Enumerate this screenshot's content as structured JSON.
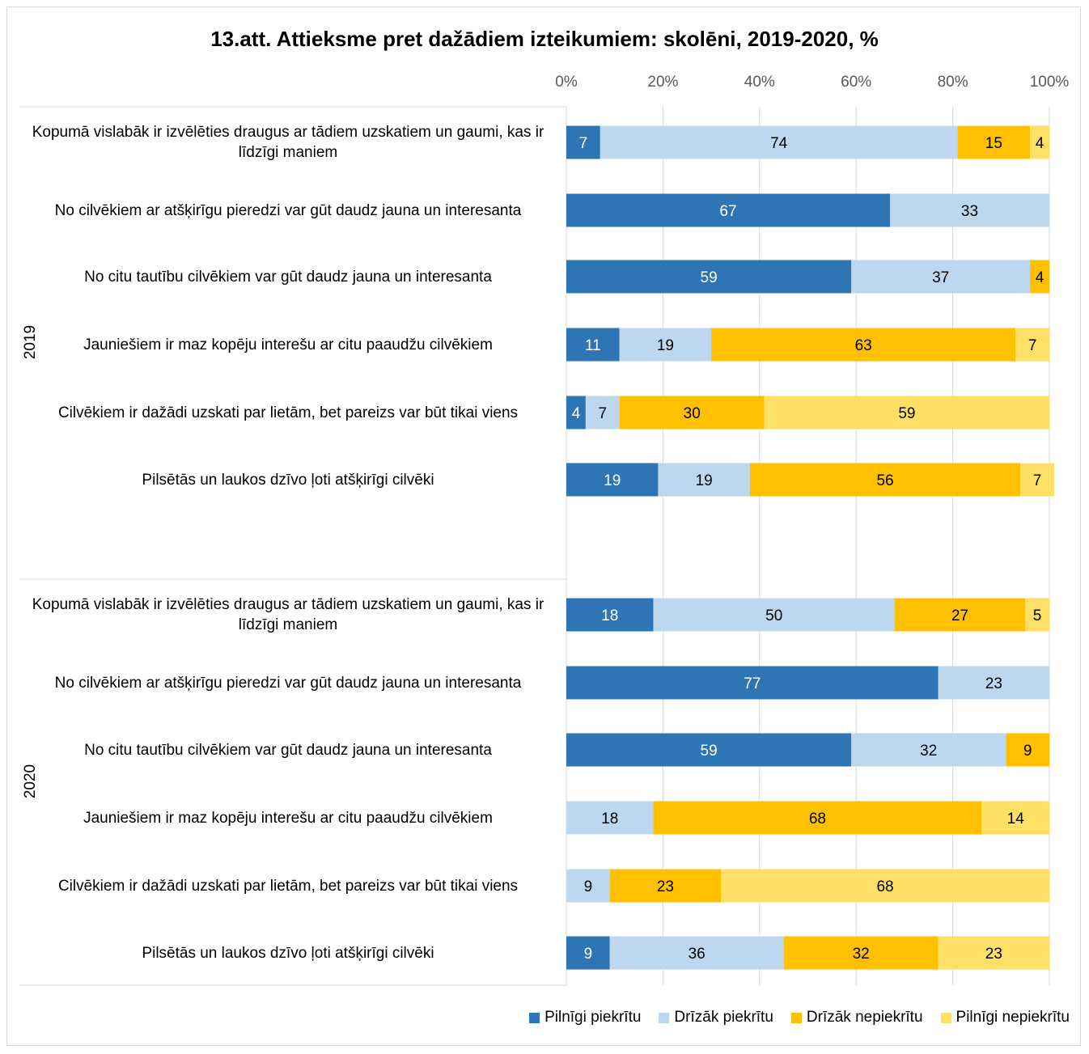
{
  "chart_data": {
    "type": "bar",
    "orientation": "horizontal-stacked-100",
    "title": "13.att. Attieksme pret dažādiem izteikumiem: skolēni, 2019-2020, %",
    "xlim": [
      0,
      100
    ],
    "x_ticks": [
      "0%",
      "20%",
      "40%",
      "60%",
      "80%",
      "100%"
    ],
    "gridlines": true,
    "legend_position": "bottom-right",
    "legend": [
      {
        "name": "Pilnīgi piekrītu",
        "color": "#2E75B6"
      },
      {
        "name": "Drīzāk piekrītu",
        "color": "#BDD7EE"
      },
      {
        "name": "Drīzāk nepiekrītu",
        "color": "#FFC000"
      },
      {
        "name": "Pilnīgi nepiekrītu",
        "color": "#FFE066"
      }
    ],
    "groups": [
      {
        "year": "2019",
        "rows": [
          {
            "label": "Kopumā vislabāk ir izvēlēties draugus ar tādiem uzskatiem un gaumi, kas ir līdzīgi maniem",
            "values": [
              7,
              74,
              15,
              4
            ]
          },
          {
            "label": "No cilvēkiem ar atšķirīgu pieredzi var gūt daudz jauna un interesanta",
            "values": [
              67,
              33,
              0,
              0
            ]
          },
          {
            "label": "No citu tautību cilvēkiem var gūt daudz jauna un interesanta",
            "values": [
              59,
              37,
              4,
              0
            ]
          },
          {
            "label": "Jauniešiem ir maz kopēju interešu ar citu paaudžu cilvēkiem",
            "values": [
              11,
              19,
              63,
              7
            ]
          },
          {
            "label": "Cilvēkiem ir dažādi uzskati par lietām, bet pareizs var būt tikai viens",
            "values": [
              4,
              7,
              30,
              59
            ]
          },
          {
            "label": "Pilsētās un laukos dzīvo ļoti atšķirīgi cilvēki",
            "values": [
              19,
              19,
              56,
              7
            ]
          }
        ]
      },
      {
        "year": "2020",
        "rows": [
          {
            "label": "Kopumā vislabāk ir izvēlēties draugus ar tādiem uzskatiem un gaumi, kas ir līdzīgi maniem",
            "values": [
              18,
              50,
              27,
              5
            ]
          },
          {
            "label": "No cilvēkiem ar atšķirīgu pieredzi var gūt daudz jauna un interesanta",
            "values": [
              77,
              23,
              0,
              0
            ]
          },
          {
            "label": "No citu tautību cilvēkiem var gūt daudz jauna un interesanta",
            "values": [
              59,
              32,
              9,
              0
            ]
          },
          {
            "label": "Jauniešiem ir maz kopēju interešu ar citu paaudžu cilvēkiem",
            "values": [
              0,
              18,
              68,
              14
            ]
          },
          {
            "label": "Cilvēkiem ir dažādi uzskati par lietām, bet pareizs var būt tikai viens",
            "values": [
              0,
              9,
              23,
              68
            ]
          },
          {
            "label": "Pilsētās un laukos dzīvo ļoti atšķirīgi cilvēki",
            "values": [
              9,
              36,
              32,
              23
            ]
          }
        ]
      }
    ]
  }
}
